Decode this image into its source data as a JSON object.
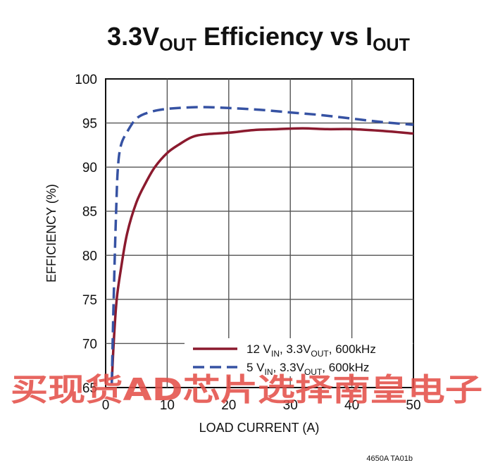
{
  "title": {
    "main": "3.3V",
    "main_sub": "OUT",
    "mid": " Efficiency vs I",
    "end_sub": "OUT"
  },
  "figure_id": "4650A TA01b",
  "watermark": "买现货AD芯片选择南皇电子",
  "colors": {
    "series_12v": "#8b1a2e",
    "series_5v": "#3652a3",
    "grid": "#555555",
    "watermark": "#e4504a"
  },
  "chart_data": {
    "type": "line",
    "xlabel": "LOAD CURRENT (A)",
    "ylabel": "EFFICIENCY (%)",
    "xlim": [
      0,
      50
    ],
    "ylim": [
      65,
      100
    ],
    "xticks": [
      0,
      10,
      20,
      30,
      40,
      50
    ],
    "yticks": [
      65,
      70,
      75,
      80,
      85,
      90,
      95,
      100
    ],
    "grid": true,
    "legend_position": "bottom-right",
    "series": [
      {
        "name_parts": [
          "12 V",
          "IN",
          ", 3.3V",
          "OUT",
          ", 600kHz"
        ],
        "style": "solid",
        "x": [
          1.0,
          1.3,
          1.8,
          2.5,
          3.5,
          5,
          6.5,
          8,
          10,
          12,
          14,
          16,
          20,
          24,
          28,
          32,
          36,
          40,
          45,
          50
        ],
        "y": [
          65.5,
          70,
          75,
          78.5,
          82.5,
          86,
          88.2,
          90,
          91.6,
          92.6,
          93.4,
          93.7,
          93.9,
          94.2,
          94.3,
          94.4,
          94.3,
          94.3,
          94.1,
          93.8
        ]
      },
      {
        "name_parts": [
          "5 V",
          "IN",
          ", 3.3V",
          "OUT",
          ", 600kHz"
        ],
        "style": "dashed",
        "x": [
          1.0,
          1.3,
          1.7,
          2.0,
          2.5,
          3.5,
          5,
          7,
          10,
          15,
          20,
          25,
          30,
          35,
          40,
          45,
          50
        ],
        "y": [
          65.5,
          75,
          85,
          90,
          92.5,
          94,
          95.5,
          96.2,
          96.6,
          96.8,
          96.7,
          96.5,
          96.2,
          95.9,
          95.5,
          95.1,
          94.8
        ]
      }
    ]
  }
}
